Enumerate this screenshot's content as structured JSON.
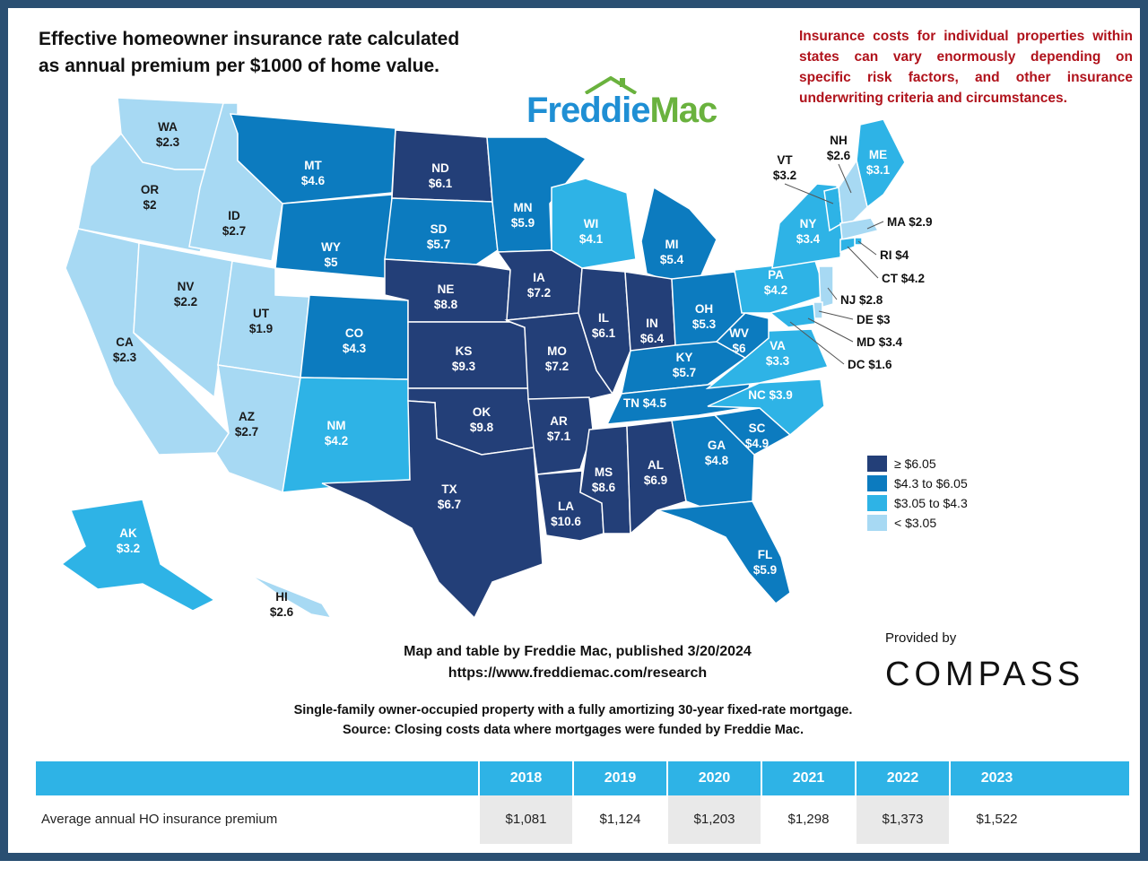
{
  "title": "Effective homeowner insurance rate calculated\nas annual premium per $1000 of home value.",
  "disclaimer": "Insurance costs for individual properties within states can vary enormously depending on specific risk factors, and other insurance underwriting criteria and circumstances.",
  "logo": {
    "freddie": "Freddie",
    "mac": "Mac"
  },
  "colors": {
    "tier1": "#233f78",
    "tier2": "#0c7bbf",
    "tier3": "#2eb3e6",
    "tier4": "#a7d9f3",
    "disclaimer": "#b0121b",
    "border": "#2a4f72"
  },
  "states": {
    "WA": {
      "abbr": "WA",
      "value": "$2.3",
      "tier": "tier4"
    },
    "OR": {
      "abbr": "OR",
      "value": "$2",
      "tier": "tier4"
    },
    "CA": {
      "abbr": "CA",
      "value": "$2.3",
      "tier": "tier4"
    },
    "ID": {
      "abbr": "ID",
      "value": "$2.7",
      "tier": "tier4"
    },
    "NV": {
      "abbr": "NV",
      "value": "$2.2",
      "tier": "tier4"
    },
    "UT": {
      "abbr": "UT",
      "value": "$1.9",
      "tier": "tier4"
    },
    "AZ": {
      "abbr": "AZ",
      "value": "$2.7",
      "tier": "tier4"
    },
    "MT": {
      "abbr": "MT",
      "value": "$4.6",
      "tier": "tier2"
    },
    "WY": {
      "abbr": "WY",
      "value": "$5",
      "tier": "tier2"
    },
    "CO": {
      "abbr": "CO",
      "value": "$4.3",
      "tier": "tier2"
    },
    "NM": {
      "abbr": "NM",
      "value": "$4.2",
      "tier": "tier3"
    },
    "ND": {
      "abbr": "ND",
      "value": "$6.1",
      "tier": "tier1"
    },
    "SD": {
      "abbr": "SD",
      "value": "$5.7",
      "tier": "tier2"
    },
    "NE": {
      "abbr": "NE",
      "value": "$8.8",
      "tier": "tier1"
    },
    "KS": {
      "abbr": "KS",
      "value": "$9.3",
      "tier": "tier1"
    },
    "OK": {
      "abbr": "OK",
      "value": "$9.8",
      "tier": "tier1"
    },
    "TX": {
      "abbr": "TX",
      "value": "$6.7",
      "tier": "tier1"
    },
    "MN": {
      "abbr": "MN",
      "value": "$5.9",
      "tier": "tier2"
    },
    "IA": {
      "abbr": "IA",
      "value": "$7.2",
      "tier": "tier1"
    },
    "MO": {
      "abbr": "MO",
      "value": "$7.2",
      "tier": "tier1"
    },
    "AR": {
      "abbr": "AR",
      "value": "$7.1",
      "tier": "tier1"
    },
    "LA": {
      "abbr": "LA",
      "value": "$10.6",
      "tier": "tier1"
    },
    "WI": {
      "abbr": "WI",
      "value": "$4.1",
      "tier": "tier3"
    },
    "IL": {
      "abbr": "IL",
      "value": "$6.1",
      "tier": "tier1"
    },
    "MI": {
      "abbr": "MI",
      "value": "$5.4",
      "tier": "tier2"
    },
    "IN": {
      "abbr": "IN",
      "value": "$6.4",
      "tier": "tier1"
    },
    "OH": {
      "abbr": "OH",
      "value": "$5.3",
      "tier": "tier2"
    },
    "KY": {
      "abbr": "KY",
      "value": "$5.7",
      "tier": "tier2"
    },
    "TN": {
      "abbr": "TN",
      "value": "$4.5",
      "tier": "tier2"
    },
    "MS": {
      "abbr": "MS",
      "value": "$8.6",
      "tier": "tier1"
    },
    "AL": {
      "abbr": "AL",
      "value": "$6.9",
      "tier": "tier1"
    },
    "GA": {
      "abbr": "GA",
      "value": "$4.8",
      "tier": "tier2"
    },
    "FL": {
      "abbr": "FL",
      "value": "$5.9",
      "tier": "tier2"
    },
    "SC": {
      "abbr": "SC",
      "value": "$4.9",
      "tier": "tier2"
    },
    "NC": {
      "abbr": "NC",
      "value": "$3.9",
      "tier": "tier3"
    },
    "VA": {
      "abbr": "VA",
      "value": "$3.3",
      "tier": "tier3"
    },
    "WV": {
      "abbr": "WV",
      "value": "$6",
      "tier": "tier2"
    },
    "PA": {
      "abbr": "PA",
      "value": "$4.2",
      "tier": "tier3"
    },
    "NY": {
      "abbr": "NY",
      "value": "$3.4",
      "tier": "tier3"
    },
    "ME": {
      "abbr": "ME",
      "value": "$3.1",
      "tier": "tier3"
    },
    "VT": {
      "abbr": "VT",
      "value": "$3.2",
      "tier": "tier3"
    },
    "NH": {
      "abbr": "NH",
      "value": "$2.6",
      "tier": "tier4"
    },
    "MA": {
      "abbr": "MA",
      "value": "$2.9",
      "tier": "tier4"
    },
    "RI": {
      "abbr": "RI",
      "value": "$4",
      "tier": "tier3"
    },
    "CT": {
      "abbr": "CT",
      "value": "$4.2",
      "tier": "tier3"
    },
    "NJ": {
      "abbr": "NJ",
      "value": "$2.8",
      "tier": "tier4"
    },
    "DE": {
      "abbr": "DE",
      "value": "$3",
      "tier": "tier4"
    },
    "MD": {
      "abbr": "MD",
      "value": "$3.4",
      "tier": "tier3"
    },
    "DC": {
      "abbr": "DC",
      "value": "$1.6",
      "tier": "tier4"
    },
    "AK": {
      "abbr": "AK",
      "value": "$3.2",
      "tier": "tier3"
    },
    "HI": {
      "abbr": "HI",
      "value": "$2.6",
      "tier": "tier4"
    }
  },
  "legend": [
    {
      "label": "≥ $6.05",
      "tier": "tier1"
    },
    {
      "label": "$4.3 to $6.05",
      "tier": "tier2"
    },
    {
      "label": "$3.05 to $4.3",
      "tier": "tier3"
    },
    {
      "label": "< $3.05",
      "tier": "tier4"
    }
  ],
  "credit": {
    "line1": "Map and table by Freddie Mac, published 3/20/2024",
    "line2": "https://www.freddiemac.com/research"
  },
  "note": {
    "line1": "Single-family owner-occupied property with a fully amortizing 30-year fixed-rate mortgage.",
    "line2": "Source:  Closing costs data where mortgages were funded by Freddie Mac."
  },
  "provided_by": "Provided by",
  "compass": "COMPASS",
  "table": {
    "row_label": "Average annual HO insurance premium",
    "years": [
      "2018",
      "2019",
      "2020",
      "2021",
      "2022",
      "2023"
    ],
    "values": [
      "$1,081",
      "$1,124",
      "$1,203",
      "$1,298",
      "$1,373",
      "$1,522"
    ]
  }
}
